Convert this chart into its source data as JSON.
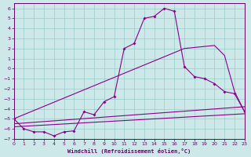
{
  "xlabel": "Windchill (Refroidissement éolien,°C)",
  "xlim": [
    0,
    23
  ],
  "ylim": [
    -7,
    6.5
  ],
  "xticks": [
    0,
    1,
    2,
    3,
    4,
    5,
    6,
    7,
    8,
    9,
    10,
    11,
    12,
    13,
    14,
    15,
    16,
    17,
    18,
    19,
    20,
    21,
    22,
    23
  ],
  "yticks": [
    -7,
    -6,
    -5,
    -4,
    -3,
    -2,
    -1,
    0,
    1,
    2,
    3,
    4,
    5,
    6
  ],
  "bg_color": "#cce8e8",
  "grid_color": "#99cccc",
  "line_color": "#880088",
  "curve1_x": [
    0,
    1,
    2,
    3,
    4,
    5,
    6,
    7,
    8,
    9,
    10,
    11,
    12,
    13,
    14,
    15,
    16,
    17,
    18,
    19,
    20,
    21,
    22,
    23
  ],
  "curve1_y": [
    -5.0,
    -6.0,
    -6.3,
    -6.3,
    -6.7,
    -6.3,
    -6.2,
    -4.3,
    -4.6,
    -3.3,
    -2.8,
    2.0,
    2.5,
    5.0,
    5.2,
    6.0,
    5.7,
    0.2,
    -0.8,
    -1.0,
    -1.5,
    -2.3,
    -2.5,
    -4.3
  ],
  "line2_x": [
    0,
    17,
    19,
    20,
    21,
    22,
    23
  ],
  "line2_y": [
    -5.0,
    2.0,
    2.2,
    2.3,
    1.3,
    -2.3,
    -4.3
  ],
  "line3_x": [
    0,
    23
  ],
  "line3_y": [
    -5.5,
    -3.8
  ],
  "line4_x": [
    0,
    23
  ],
  "line4_y": [
    -5.8,
    -4.5
  ],
  "xlabel_color": "#660066",
  "tick_color": "#660066",
  "spine_color": "#660066"
}
